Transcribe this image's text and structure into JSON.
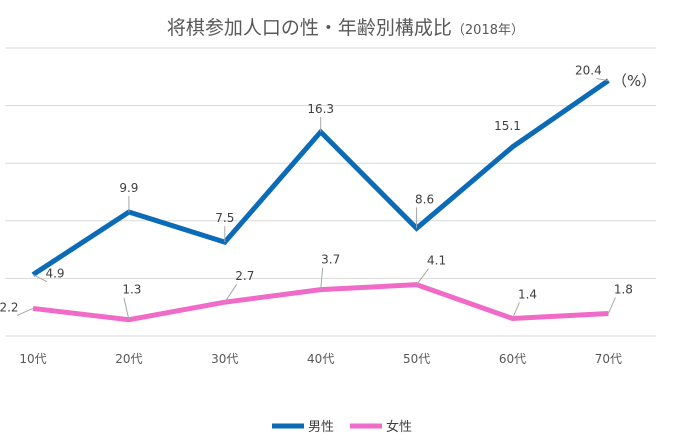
{
  "chart_data": {
    "type": "line",
    "title": "将棋参加人口の性・年齢別構成比",
    "title_suffix": "（2018年）",
    "unit": "（%）",
    "categories": [
      "10代",
      "20代",
      "30代",
      "40代",
      "50代",
      "60代",
      "70代"
    ],
    "series": [
      {
        "name": "男性",
        "color": "#0B6BB6",
        "values": [
          4.9,
          9.9,
          7.5,
          16.3,
          8.6,
          15.1,
          20.4
        ]
      },
      {
        "name": "女性",
        "color": "#F06BC8",
        "values": [
          2.2,
          1.3,
          2.7,
          3.7,
          4.1,
          1.4,
          1.8
        ]
      }
    ],
    "ylim": [
      0,
      23
    ],
    "grid": true,
    "legend": "bottom"
  }
}
